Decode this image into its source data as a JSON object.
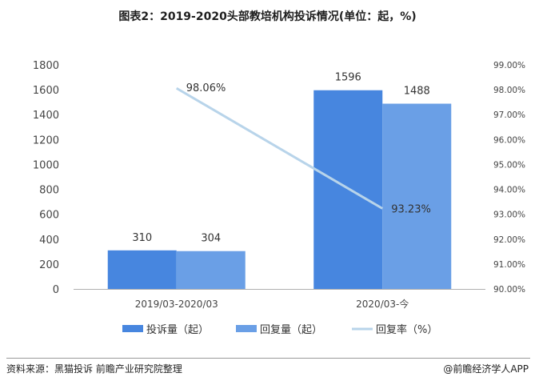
{
  "title": "图表2：2019-2020头部教培机构投诉情况(单位：起，%)",
  "chart_data": {
    "type": "bar",
    "categories": [
      "2019/03-2020/03",
      "2020/03-今"
    ],
    "series": [
      {
        "name": "投诉量（起）",
        "type": "bar",
        "axis": "left",
        "color": "#4786df",
        "values": [
          310,
          1596
        ]
      },
      {
        "name": "回复量（起）",
        "type": "bar",
        "axis": "left",
        "color": "#6a9fe6",
        "values": [
          304,
          1488
        ]
      },
      {
        "name": "回复率（%）",
        "type": "line",
        "axis": "right",
        "color": "#b8d4ea",
        "values": [
          98.06,
          93.23
        ],
        "labels": [
          "98.06%",
          "93.23%"
        ]
      }
    ],
    "left_axis": {
      "min": 0,
      "max": 1800,
      "step": 200,
      "ticks": [
        "0",
        "200",
        "400",
        "600",
        "800",
        "1000",
        "1200",
        "1400",
        "1600",
        "1800"
      ]
    },
    "right_axis": {
      "min": 90,
      "max": 99,
      "step": 1,
      "ticks": [
        "90.00%",
        "91.00%",
        "92.00%",
        "93.00%",
        "94.00%",
        "95.00%",
        "96.00%",
        "97.00%",
        "98.00%",
        "99.00%"
      ]
    },
    "legend_position": "bottom",
    "grid": false
  },
  "footer": {
    "source": "资料来源：黑猫投诉 前瞻产业研究院整理",
    "credit": "@前瞻经济学人APP"
  }
}
